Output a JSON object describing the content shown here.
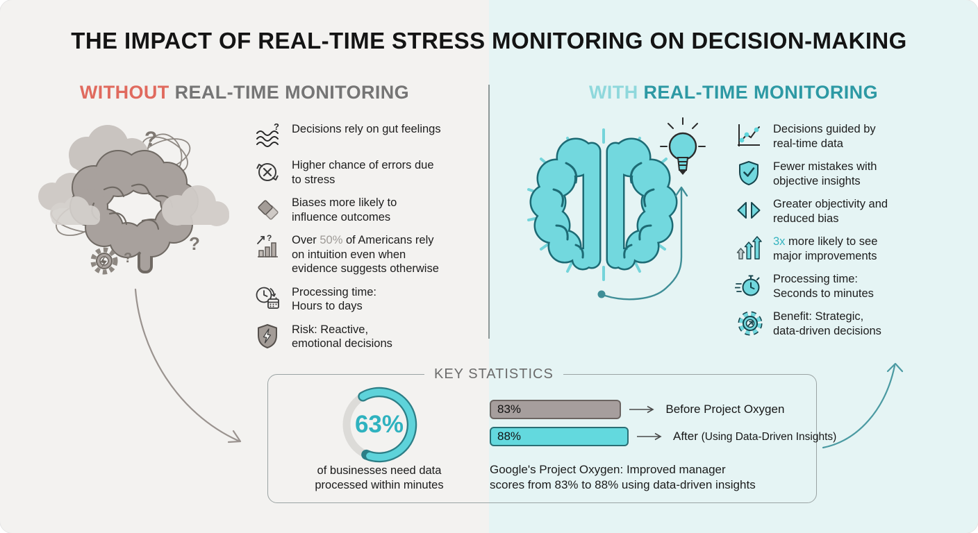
{
  "page_title": "THE IMPACT OF REAL-TIME STRESS MONITORING ON DECISION-MAKING",
  "colors": {
    "accent_red": "#e06a5e",
    "accent_teal_dark": "#2d99a4",
    "accent_teal_light": "#8fd8dc",
    "heading_gray": "#757575",
    "bar_gray": "#a69e9d",
    "bar_teal": "#63d9de",
    "donut_teal": "#45c3cd",
    "bg_left": "#f3f2f0",
    "bg_right": "#e5f4f4"
  },
  "left": {
    "heading_accent": "WITHOUT",
    "heading_rest": " REAL-TIME MONITORING",
    "illustration": "stressed-gray-brain-with-clouds-scribbles-question-marks-broken-gear",
    "items": [
      {
        "icon": "gut-feeling-waves-icon",
        "text": "Decisions rely on gut feelings"
      },
      {
        "icon": "error-cycle-icon",
        "text": "Higher chance of errors due\nto stress"
      },
      {
        "icon": "bias-diamonds-icon",
        "text": "Biases more likely to\ninfluence outcomes"
      },
      {
        "icon": "intuition-bar-chart-icon",
        "prefix": "Over ",
        "highlight": "50%",
        "suffix": " of Americans rely\non intuition even when\nevidence suggests otherwise"
      },
      {
        "icon": "clock-calendar-icon",
        "text": "Processing time:\nHours to days"
      },
      {
        "icon": "shield-lightning-icon",
        "text": "Risk: Reactive,\nemotional decisions"
      }
    ]
  },
  "right": {
    "heading_accent": "WITH",
    "heading_rest": " REAL-TIME MONITORING",
    "illustration": "teal-brain-with-rays-lightbulb-idea-arrow",
    "items": [
      {
        "icon": "realtime-data-chart-icon",
        "text": "Decisions guided by\nreal-time data"
      },
      {
        "icon": "shield-check-icon",
        "text": "Fewer mistakes with\nobjective insights"
      },
      {
        "icon": "objectivity-triangles-icon",
        "text": "Greater objectivity and\nreduced bias"
      },
      {
        "icon": "growth-arrows-icon",
        "highlight": "3x",
        "suffix": " more likely to see\nmajor improvements"
      },
      {
        "icon": "stopwatch-icon",
        "text": "Processing time:\nSeconds to minutes"
      },
      {
        "icon": "gear-arrow-icon",
        "text": "Benefit: Strategic,\ndata-driven decisions"
      }
    ]
  },
  "key_statistics": {
    "title": "KEY STATISTICS",
    "donut": {
      "value": 63,
      "label": "63%",
      "caption": "of businesses need data\nprocessed within minutes"
    },
    "bars": [
      {
        "label": "83%",
        "value": 83,
        "annotation": "Before Project Oxygen"
      },
      {
        "label": "88%",
        "value": 88,
        "annotation_main": "After ",
        "annotation_small": "(Using Data-Driven Insights)"
      }
    ],
    "caption": "Google's Project Oxygen: Improved manager\nscores from 83% to 88% using data-driven insights"
  },
  "chart_data": [
    {
      "type": "pie",
      "title": "KEY STATISTICS donut",
      "labels": [
        "businesses needing data processed within minutes",
        "other"
      ],
      "values": [
        63,
        37
      ],
      "center_label": "63%",
      "caption": "of businesses need data processed within minutes"
    },
    {
      "type": "bar",
      "categories": [
        "Before Project Oxygen",
        "After (Using Data-Driven Insights)"
      ],
      "values": [
        83,
        88
      ],
      "xlim": [
        0,
        100
      ],
      "caption": "Google's Project Oxygen: Improved manager scores from 83% to 88% using data-driven insights"
    }
  ]
}
